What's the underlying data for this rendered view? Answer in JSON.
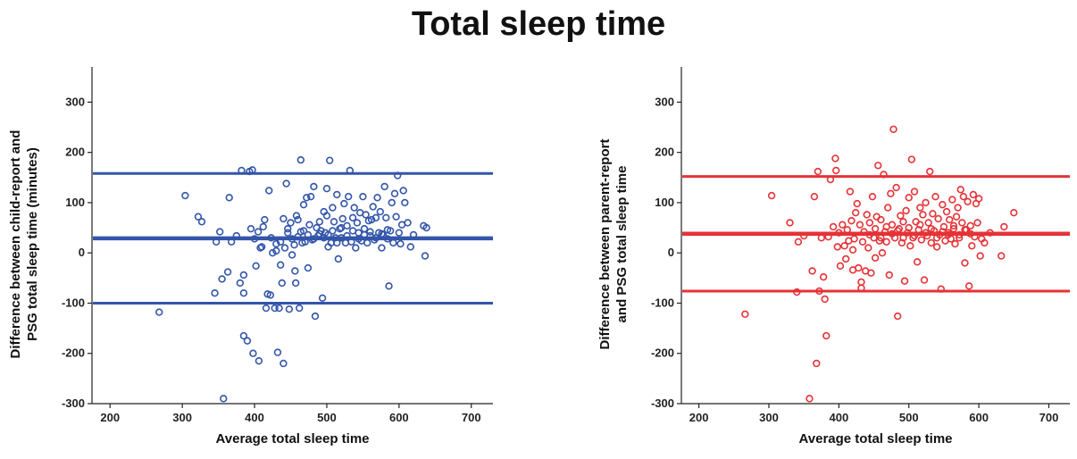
{
  "title": "Total sleep time",
  "chart_data": [
    {
      "type": "scatter",
      "color": "#3355aa",
      "xlabel": "Average total sleep time",
      "ylabel_lines": [
        "Difference between child-report and",
        "PSG total sleep time (minutes)"
      ],
      "xlim": [
        175,
        730
      ],
      "ylim": [
        -300,
        370
      ],
      "xticks": [
        200,
        300,
        400,
        500,
        600,
        700
      ],
      "yticks": [
        -300,
        -200,
        -100,
        0,
        100,
        200,
        300
      ],
      "reference_lines": [
        158,
        29,
        -100
      ],
      "grid": false,
      "points": [
        [
          268,
          -118
        ],
        [
          304,
          114
        ],
        [
          322,
          72
        ],
        [
          327,
          62
        ],
        [
          345,
          -80
        ],
        [
          347,
          22
        ],
        [
          352,
          42
        ],
        [
          355,
          -52
        ],
        [
          357,
          -290
        ],
        [
          363,
          -38
        ],
        [
          365,
          110
        ],
        [
          368,
          22
        ],
        [
          375,
          34
        ],
        [
          380,
          -60
        ],
        [
          382,
          164
        ],
        [
          385,
          -44
        ],
        [
          385,
          -80
        ],
        [
          385,
          -165
        ],
        [
          390,
          -175
        ],
        [
          393,
          162
        ],
        [
          395,
          48
        ],
        [
          397,
          165
        ],
        [
          398,
          -200
        ],
        [
          400,
          28
        ],
        [
          402,
          -26
        ],
        [
          405,
          42
        ],
        [
          406,
          -215
        ],
        [
          408,
          10
        ],
        [
          410,
          12
        ],
        [
          412,
          52
        ],
        [
          414,
          66
        ],
        [
          416,
          -110
        ],
        [
          418,
          -82
        ],
        [
          420,
          124
        ],
        [
          422,
          -84
        ],
        [
          423,
          30
        ],
        [
          425,
          0
        ],
        [
          428,
          -110
        ],
        [
          430,
          18
        ],
        [
          432,
          -198
        ],
        [
          434,
          -110
        ],
        [
          436,
          22
        ],
        [
          438,
          -60
        ],
        [
          440,
          -220
        ],
        [
          442,
          10
        ],
        [
          444,
          138
        ],
        [
          446,
          48
        ],
        [
          448,
          -112
        ],
        [
          450,
          60
        ],
        [
          452,
          -4
        ],
        [
          455,
          16
        ],
        [
          457,
          -60
        ],
        [
          458,
          74
        ],
        [
          460,
          66
        ],
        [
          462,
          -110
        ],
        [
          464,
          42
        ],
        [
          466,
          20
        ],
        [
          468,
          96
        ],
        [
          470,
          22
        ],
        [
          472,
          110
        ],
        [
          474,
          -30
        ],
        [
          476,
          56
        ],
        [
          478,
          112
        ],
        [
          480,
          26
        ],
        [
          482,
          132
        ],
        [
          484,
          -126
        ],
        [
          486,
          50
        ],
        [
          488,
          34
        ],
        [
          490,
          62
        ],
        [
          492,
          44
        ],
        [
          494,
          -90
        ],
        [
          496,
          82
        ],
        [
          498,
          40
        ],
        [
          500,
          74
        ],
        [
          502,
          12
        ],
        [
          504,
          184
        ],
        [
          506,
          20
        ],
        [
          508,
          90
        ],
        [
          510,
          62
        ],
        [
          512,
          30
        ],
        [
          514,
          116
        ],
        [
          516,
          -12
        ],
        [
          518,
          48
        ],
        [
          520,
          30
        ],
        [
          522,
          68
        ],
        [
          524,
          98
        ],
        [
          526,
          20
        ],
        [
          528,
          54
        ],
        [
          530,
          112
        ],
        [
          532,
          164
        ],
        [
          534,
          22
        ],
        [
          536,
          70
        ],
        [
          538,
          90
        ],
        [
          540,
          10
        ],
        [
          542,
          60
        ],
        [
          544,
          40
        ],
        [
          546,
          80
        ],
        [
          548,
          24
        ],
        [
          550,
          112
        ],
        [
          552,
          48
        ],
        [
          554,
          76
        ],
        [
          556,
          20
        ],
        [
          558,
          64
        ],
        [
          560,
          34
        ],
        [
          562,
          66
        ],
        [
          564,
          92
        ],
        [
          566,
          26
        ],
        [
          568,
          70
        ],
        [
          570,
          110
        ],
        [
          572,
          40
        ],
        [
          574,
          82
        ],
        [
          576,
          10
        ],
        [
          578,
          36
        ],
        [
          580,
          132
        ],
        [
          582,
          70
        ],
        [
          584,
          28
        ],
        [
          586,
          -66
        ],
        [
          588,
          44
        ],
        [
          590,
          100
        ],
        [
          592,
          20
        ],
        [
          594,
          118
        ],
        [
          596,
          72
        ],
        [
          598,
          154
        ],
        [
          600,
          40
        ],
        [
          602,
          18
        ],
        [
          604,
          56
        ],
        [
          606,
          124
        ],
        [
          608,
          100
        ],
        [
          612,
          60
        ],
        [
          616,
          12
        ],
        [
          620,
          36
        ],
        [
          634,
          54
        ],
        [
          636,
          -6
        ],
        [
          638,
          50
        ],
        [
          446,
          40
        ],
        [
          452,
          28
        ],
        [
          460,
          32
        ],
        [
          468,
          44
        ],
        [
          474,
          36
        ],
        [
          482,
          28
        ],
        [
          490,
          38
        ],
        [
          496,
          30
        ],
        [
          502,
          36
        ],
        [
          508,
          44
        ],
        [
          514,
          20
        ],
        [
          520,
          50
        ],
        [
          528,
          34
        ],
        [
          536,
          44
        ],
        [
          544,
          28
        ],
        [
          552,
          36
        ],
        [
          560,
          42
        ],
        [
          568,
          30
        ],
        [
          576,
          38
        ],
        [
          584,
          46
        ],
        [
          464,
          185
        ],
        [
          456,
          -36
        ],
        [
          440,
          68
        ],
        [
          430,
          4
        ],
        [
          436,
          -24
        ],
        [
          500,
          128
        ]
      ]
    },
    {
      "type": "scatter",
      "color": "#e53236",
      "xlabel": "Average total sleep time",
      "ylabel_lines": [
        "Difference between parent-report",
        "and PSG total sleep time"
      ],
      "xlim": [
        175,
        730
      ],
      "ylim": [
        -300,
        370
      ],
      "xticks": [
        200,
        300,
        400,
        500,
        600,
        700
      ],
      "yticks": [
        -300,
        -200,
        -100,
        0,
        100,
        200,
        300
      ],
      "reference_lines": [
        152,
        38,
        -76
      ],
      "grid": false,
      "points": [
        [
          266,
          -122
        ],
        [
          304,
          114
        ],
        [
          330,
          60
        ],
        [
          340,
          -78
        ],
        [
          342,
          22
        ],
        [
          350,
          34
        ],
        [
          358,
          -290
        ],
        [
          362,
          -36
        ],
        [
          365,
          112
        ],
        [
          368,
          -220
        ],
        [
          370,
          162
        ],
        [
          372,
          -76
        ],
        [
          375,
          30
        ],
        [
          378,
          -48
        ],
        [
          380,
          -92
        ],
        [
          382,
          -165
        ],
        [
          385,
          32
        ],
        [
          388,
          146
        ],
        [
          392,
          52
        ],
        [
          395,
          188
        ],
        [
          396,
          164
        ],
        [
          398,
          12
        ],
        [
          400,
          40
        ],
        [
          402,
          -26
        ],
        [
          405,
          56
        ],
        [
          408,
          14
        ],
        [
          410,
          -12
        ],
        [
          412,
          46
        ],
        [
          414,
          24
        ],
        [
          416,
          122
        ],
        [
          418,
          64
        ],
        [
          420,
          6
        ],
        [
          422,
          28
        ],
        [
          424,
          80
        ],
        [
          426,
          98
        ],
        [
          428,
          -30
        ],
        [
          430,
          56
        ],
        [
          432,
          -70
        ],
        [
          434,
          22
        ],
        [
          436,
          42
        ],
        [
          438,
          -36
        ],
        [
          440,
          76
        ],
        [
          442,
          10
        ],
        [
          444,
          60
        ],
        [
          446,
          -40
        ],
        [
          448,
          112
        ],
        [
          450,
          30
        ],
        [
          452,
          -10
        ],
        [
          454,
          72
        ],
        [
          456,
          174
        ],
        [
          458,
          24
        ],
        [
          460,
          66
        ],
        [
          462,
          0
        ],
        [
          464,
          156
        ],
        [
          466,
          42
        ],
        [
          468,
          22
        ],
        [
          470,
          90
        ],
        [
          472,
          -44
        ],
        [
          474,
          118
        ],
        [
          476,
          56
        ],
        [
          478,
          246
        ],
        [
          480,
          30
        ],
        [
          482,
          130
        ],
        [
          484,
          -126
        ],
        [
          486,
          48
        ],
        [
          488,
          74
        ],
        [
          490,
          20
        ],
        [
          492,
          62
        ],
        [
          494,
          -56
        ],
        [
          496,
          84
        ],
        [
          498,
          40
        ],
        [
          500,
          110
        ],
        [
          502,
          14
        ],
        [
          504,
          186
        ],
        [
          506,
          30
        ],
        [
          508,
          122
        ],
        [
          510,
          62
        ],
        [
          512,
          -18
        ],
        [
          514,
          46
        ],
        [
          516,
          90
        ],
        [
          518,
          26
        ],
        [
          520,
          76
        ],
        [
          522,
          -54
        ],
        [
          524,
          100
        ],
        [
          526,
          34
        ],
        [
          528,
          60
        ],
        [
          530,
          162
        ],
        [
          532,
          20
        ],
        [
          534,
          78
        ],
        [
          536,
          44
        ],
        [
          538,
          112
        ],
        [
          540,
          12
        ],
        [
          542,
          68
        ],
        [
          544,
          36
        ],
        [
          546,
          -72
        ],
        [
          548,
          96
        ],
        [
          550,
          52
        ],
        [
          552,
          24
        ],
        [
          554,
          82
        ],
        [
          556,
          40
        ],
        [
          558,
          66
        ],
        [
          560,
          28
        ],
        [
          562,
          106
        ],
        [
          564,
          48
        ],
        [
          566,
          18
        ],
        [
          568,
          72
        ],
        [
          570,
          90
        ],
        [
          572,
          36
        ],
        [
          574,
          126
        ],
        [
          576,
          60
        ],
        [
          578,
          112
        ],
        [
          580,
          -20
        ],
        [
          582,
          46
        ],
        [
          584,
          102
        ],
        [
          586,
          -66
        ],
        [
          588,
          54
        ],
        [
          590,
          14
        ],
        [
          592,
          116
        ],
        [
          594,
          32
        ],
        [
          596,
          98
        ],
        [
          598,
          60
        ],
        [
          600,
          108
        ],
        [
          602,
          -6
        ],
        [
          604,
          28
        ],
        [
          608,
          20
        ],
        [
          616,
          40
        ],
        [
          632,
          -6
        ],
        [
          636,
          52
        ],
        [
          650,
          80
        ],
        [
          444,
          36
        ],
        [
          452,
          48
        ],
        [
          460,
          30
        ],
        [
          468,
          52
        ],
        [
          476,
          38
        ],
        [
          484,
          44
        ],
        [
          492,
          30
        ],
        [
          500,
          50
        ],
        [
          508,
          34
        ],
        [
          516,
          56
        ],
        [
          524,
          40
        ],
        [
          532,
          48
        ],
        [
          540,
          30
        ],
        [
          548,
          42
        ],
        [
          556,
          36
        ],
        [
          564,
          54
        ],
        [
          572,
          30
        ],
        [
          580,
          46
        ],
        [
          588,
          38
        ],
        [
          420,
          -34
        ],
        [
          432,
          -58
        ]
      ]
    }
  ]
}
